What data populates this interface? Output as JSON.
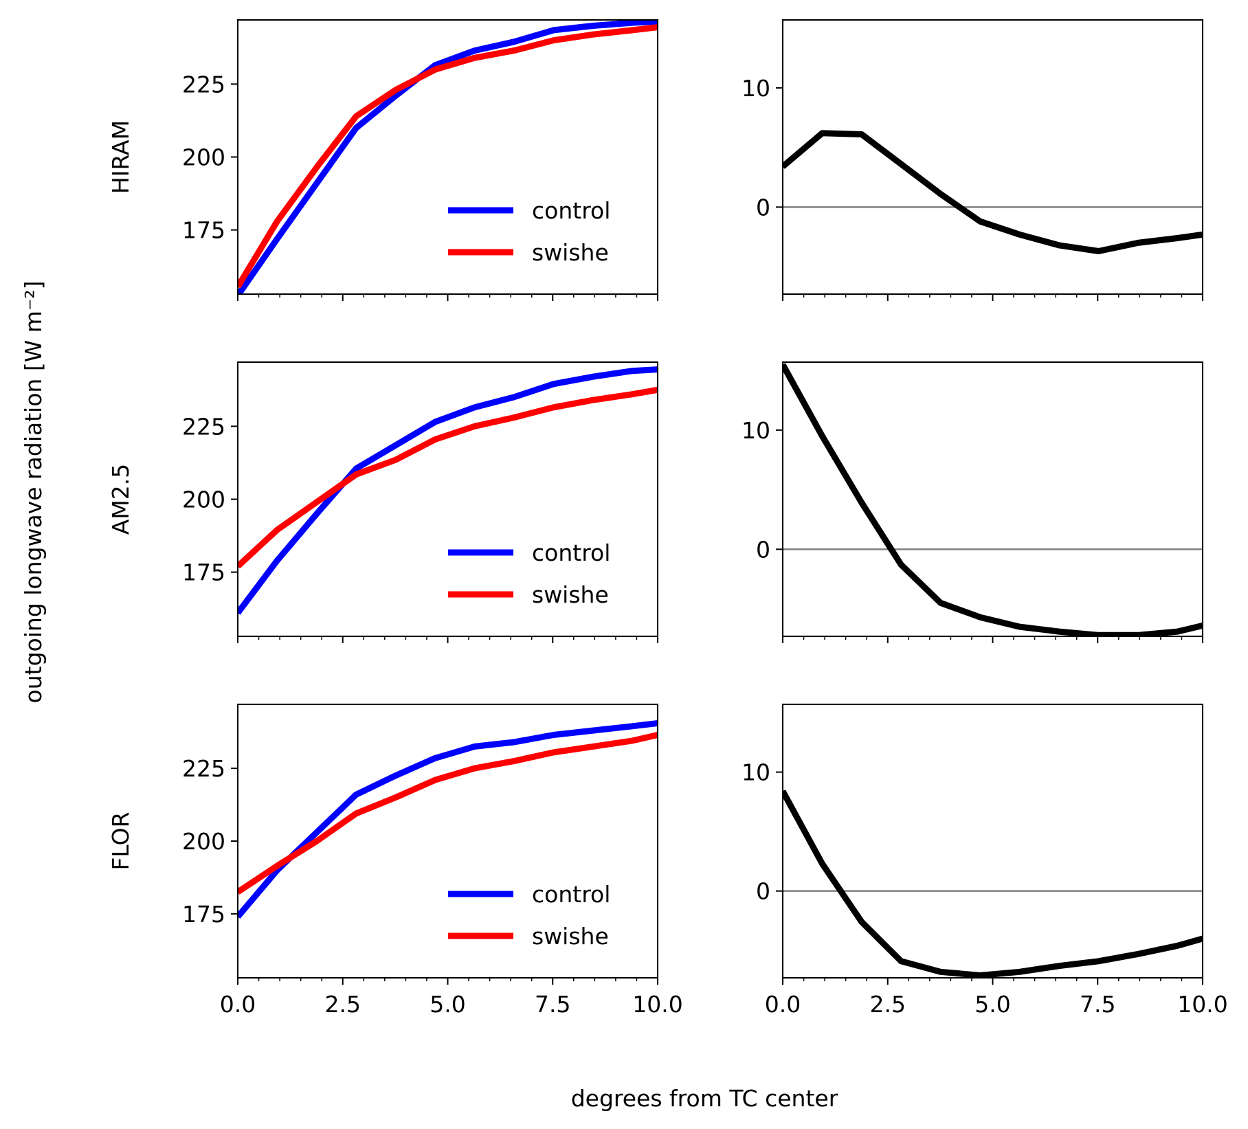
{
  "colors": {
    "control": "#0000ff",
    "swishe": "#ff0000",
    "difference": "#000000",
    "zero_line": "#808080",
    "axes": "#000000"
  },
  "chart_data": {
    "type": "line",
    "ylabel": "outgoing longwave radiation [W m⁻²]",
    "xlabel": "degrees from TC center",
    "left_ylim": [
      153,
      247
    ],
    "right_ylim": [
      -7.3,
      15.7
    ],
    "xlim": [
      0,
      10
    ],
    "x_tick_labels": [
      "0.0",
      "2.5",
      "5.0",
      "7.5",
      "10.0"
    ],
    "left_y_tick_labels": [
      "175",
      "200",
      "225"
    ],
    "right_y_tick_labels": [
      "0",
      "10"
    ],
    "x": [
      0,
      0.94,
      1.88,
      2.82,
      3.76,
      4.7,
      5.64,
      6.58,
      7.52,
      8.46,
      9.4,
      10.0
    ],
    "rows": [
      {
        "model": "HIRAM",
        "legend": [
          "control",
          "swishe"
        ],
        "series": [
          {
            "name": "control",
            "values": [
              152.5,
              172,
              191,
              210,
              221,
              231.5,
              236.5,
              239.5,
              243.5,
              245,
              246,
              246.5
            ]
          },
          {
            "name": "swishe",
            "values": [
              155.5,
              178,
              196.5,
              214,
              223,
              230,
              234,
              236.5,
              240,
              242,
              243.5,
              244.5
            ]
          }
        ],
        "difference": [
          3.4,
          6.2,
          6.1,
          3.6,
          1.1,
          -1.2,
          -2.3,
          -3.2,
          -3.7,
          -3.0,
          -2.6,
          -2.3
        ]
      },
      {
        "model": "AM2.5",
        "legend": [
          "control",
          "swishe"
        ],
        "series": [
          {
            "name": "control",
            "values": [
              161,
              179,
              195,
              210.5,
              218.5,
              226.5,
              231.5,
              235,
              239.5,
              242,
              244,
              244.5
            ]
          },
          {
            "name": "swishe",
            "values": [
              177,
              189.5,
              199,
              208.5,
              213.5,
              220.5,
              225,
              228,
              231.5,
              234,
              236,
              237.5
            ]
          }
        ],
        "difference": [
          15.5,
          9.5,
          3.9,
          -1.3,
          -4.5,
          -5.7,
          -6.5,
          -6.9,
          -7.2,
          -7.2,
          -6.9,
          -6.4
        ]
      },
      {
        "model": "FLOR",
        "legend": [
          "control",
          "swishe"
        ],
        "series": [
          {
            "name": "control",
            "values": [
              174,
              190,
              203,
              216,
              222.5,
              228.5,
              232.5,
              234,
              236.5,
              238,
              239.5,
              240.5
            ]
          },
          {
            "name": "swishe",
            "values": [
              182.5,
              191.5,
              200,
              209.5,
              215,
              221,
              225,
              227.5,
              230.5,
              232.5,
              234.5,
              236.5
            ]
          }
        ],
        "difference": [
          8.4,
          2.3,
          -2.6,
          -5.9,
          -6.8,
          -7.1,
          -6.8,
          -6.3,
          -5.9,
          -5.3,
          -4.6,
          -4.0
        ]
      }
    ]
  }
}
